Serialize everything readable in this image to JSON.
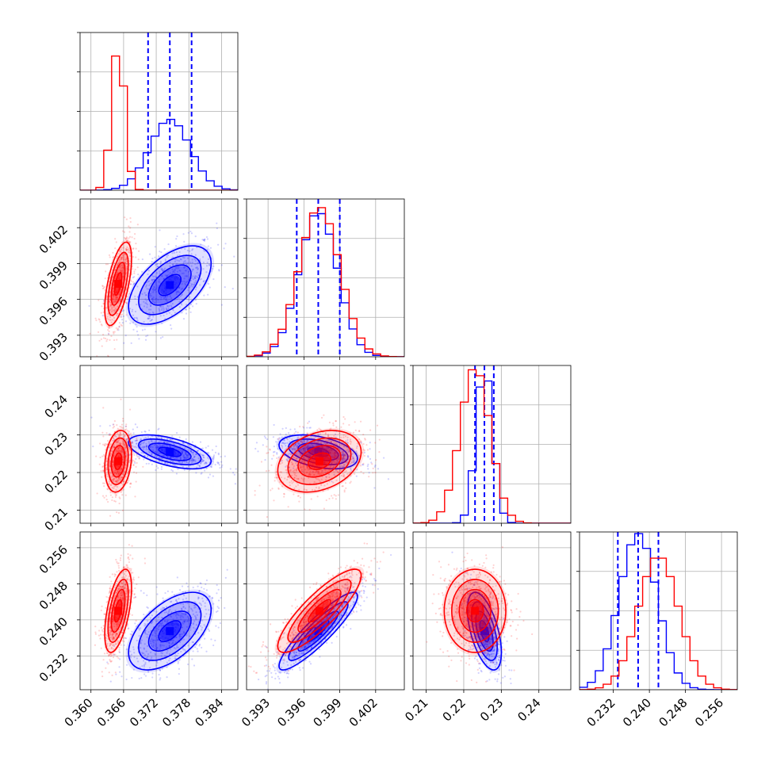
{
  "chart_data": {
    "type": "corner",
    "parameters": 4,
    "grid": true,
    "series": [
      {
        "color": "#0000ff",
        "means": [
          0.3745,
          0.3972,
          0.2255,
          0.2375
        ],
        "sds": [
          0.0037,
          0.0016,
          0.0022,
          0.0042
        ],
        "quantiles_marked": true,
        "quantiles": [
          [
            0.3705,
            0.3745,
            0.3785
          ],
          [
            0.3954,
            0.3972,
            0.399
          ],
          [
            0.223,
            0.2255,
            0.228
          ],
          [
            0.233,
            0.2375,
            0.242
          ]
        ],
        "hist_peak": [
          0.45,
          0.92,
          0.99,
          0.99
        ]
      },
      {
        "color": "#ff0000",
        "means": [
          0.365,
          0.3973,
          0.223,
          0.242
        ],
        "sds": [
          0.0012,
          0.0017,
          0.004,
          0.0045
        ],
        "quantiles_marked": false,
        "hist_peak": [
          0.92,
          0.95,
          0.99,
          0.85
        ]
      }
    ],
    "correlations": {
      "blue": {
        "1-0": 0.55,
        "2-0": -0.55,
        "2-1": -0.4,
        "3-0": 0.55,
        "3-1": 0.9,
        "3-2": -0.55
      },
      "red": {
        "1-0": 0.6,
        "2-0": 0.2,
        "2-1": 0.3,
        "3-0": 0.55,
        "3-1": 0.85,
        "3-2": 0.0
      }
    },
    "axes": [
      {
        "lim": [
          0.358,
          0.387
        ],
        "ticks": [
          0.36,
          0.366,
          0.372,
          0.378,
          0.384
        ],
        "tick_labels": [
          "0.360",
          "0.366",
          "0.372",
          "0.378",
          "0.384"
        ]
      },
      {
        "lim": [
          0.3912,
          0.4044
        ],
        "ticks": [
          0.393,
          0.396,
          0.399,
          0.402
        ],
        "tick_labels": [
          "0.393",
          "0.396",
          "0.399",
          "0.402"
        ]
      },
      {
        "lim": [
          0.2065,
          0.2485
        ],
        "ticks": [
          0.21,
          0.22,
          0.23,
          0.24
        ],
        "tick_labels": [
          "0.21",
          "0.22",
          "0.23",
          "0.24"
        ]
      },
      {
        "lim": [
          0.2245,
          0.2595
        ],
        "ticks": [
          0.232,
          0.24,
          0.248,
          0.256
        ],
        "tick_labels": [
          "0.232",
          "0.240",
          "0.248",
          "0.256"
        ]
      }
    ]
  }
}
